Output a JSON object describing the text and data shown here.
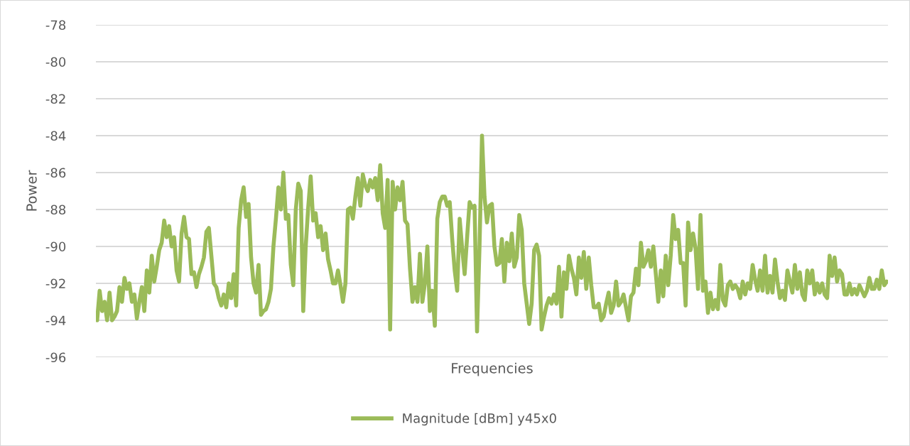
{
  "chart_data": {
    "type": "line",
    "xlabel": "Frequencies",
    "ylabel": "Power",
    "categories": [
      null,
      null,
      null,
      null,
      null,
      null,
      null,
      null,
      null,
      null,
      null,
      null,
      null,
      null,
      null,
      null,
      null,
      null,
      null,
      null,
      null,
      null,
      null,
      null,
      null,
      null,
      null,
      null,
      null,
      null,
      null,
      null,
      null,
      null,
      null,
      null,
      null,
      null,
      null,
      null,
      null,
      null,
      null,
      null,
      null,
      null,
      null,
      null,
      null,
      null,
      null,
      null,
      null,
      null,
      null,
      null,
      null,
      null,
      null,
      null,
      null,
      null,
      null,
      null,
      null,
      null,
      null,
      null,
      null,
      null,
      null,
      null,
      null,
      null,
      null,
      null,
      null,
      null,
      null,
      null,
      null,
      null,
      null,
      null,
      null,
      null,
      null,
      null,
      null,
      null,
      null,
      null,
      null,
      null,
      null,
      null,
      null,
      null,
      null,
      null,
      null,
      null,
      null,
      null,
      null,
      null,
      null,
      null,
      null,
      null,
      null,
      null,
      null,
      null,
      null,
      null,
      null,
      null,
      null,
      null,
      null,
      null,
      null,
      null,
      null,
      null,
      null,
      null,
      null,
      null,
      null,
      null,
      null,
      null,
      null,
      null,
      null,
      null,
      null,
      null,
      null,
      null,
      null,
      null,
      null,
      null,
      null,
      null,
      null,
      null,
      null,
      null,
      null,
      null,
      null,
      null,
      null,
      null,
      null,
      null,
      null,
      null,
      null,
      null,
      null,
      null,
      null,
      null,
      null,
      null,
      null,
      null,
      null,
      null,
      null,
      null,
      null,
      null,
      null,
      null,
      null,
      null,
      null,
      null,
      null,
      null,
      null,
      null,
      null,
      null,
      null,
      null,
      null,
      null,
      null,
      null,
      null,
      null,
      null,
      null,
      null,
      null,
      null,
      null,
      null,
      null,
      null,
      null,
      null,
      null,
      null,
      null,
      null,
      null,
      null,
      null,
      null,
      null,
      null,
      null,
      null,
      null,
      null,
      null,
      null,
      null,
      null,
      null,
      null,
      null,
      null,
      null,
      null,
      null,
      null,
      null,
      null,
      null,
      null,
      null,
      null,
      null,
      null,
      null,
      null,
      null,
      null,
      null,
      null,
      null,
      null,
      null,
      null,
      null,
      null,
      null,
      null,
      null,
      null,
      null,
      null,
      null,
      null,
      null,
      null,
      null,
      null,
      null,
      null,
      null,
      null,
      null,
      null,
      null,
      null,
      null,
      null,
      null,
      null,
      null,
      null,
      null,
      null,
      null,
      null,
      null,
      null,
      null,
      null,
      null,
      null,
      null,
      null,
      null,
      null,
      null,
      null,
      null,
      null,
      null,
      null,
      null,
      null,
      null,
      null,
      null,
      null,
      null,
      null,
      null,
      null,
      null,
      null,
      null,
      null,
      null,
      null,
      null,
      null
    ],
    "series": [
      {
        "name": "Magnitude [dBm] y45x0",
        "color": "#9bbb59",
        "values": [
          -94,
          -92.4,
          -93.5,
          -93,
          -94,
          -92.5,
          -94,
          -93.8,
          -93.5,
          -92.2,
          -93,
          -91.7,
          -92.3,
          -92,
          -93,
          -92.6,
          -93.9,
          -93,
          -92.2,
          -93.5,
          -91.3,
          -92.5,
          -90.5,
          -91.9,
          -91.1,
          -90.2,
          -89.8,
          -88.6,
          -89.5,
          -88.9,
          -90,
          -89.5,
          -91.3,
          -91.9,
          -89.3,
          -88.4,
          -89.5,
          -89.6,
          -91.5,
          -91.4,
          -92.2,
          -91.5,
          -91.1,
          -90.6,
          -89.2,
          -89,
          -90.5,
          -92,
          -92.2,
          -92.8,
          -93.2,
          -92.6,
          -93.3,
          -92,
          -92.8,
          -91.5,
          -93.2,
          -89,
          -87.5,
          -86.8,
          -88.4,
          -87.7,
          -90.6,
          -92,
          -92.5,
          -91,
          -93.7,
          -93.5,
          -93.4,
          -93,
          -92.3,
          -90,
          -88.5,
          -86.8,
          -88,
          -86,
          -88.5,
          -88.3,
          -91,
          -92.1,
          -88,
          -86.6,
          -87,
          -93.5,
          -90,
          -87.9,
          -86.2,
          -88.6,
          -88.2,
          -89.5,
          -88.9,
          -90.2,
          -89.3,
          -90.7,
          -91.3,
          -92,
          -92,
          -91.3,
          -92.1,
          -93,
          -92,
          -88,
          -87.9,
          -88.5,
          -87.3,
          -86.3,
          -87.8,
          -86.1,
          -86.7,
          -87,
          -86.4,
          -86.8,
          -86.3,
          -87.5,
          -85.6,
          -88.2,
          -89,
          -86.4,
          -94.5,
          -86.5,
          -88,
          -86.8,
          -87.5,
          -86.5,
          -88.6,
          -88.8,
          -91.2,
          -93,
          -92.2,
          -93,
          -90.4,
          -93,
          -92,
          -90,
          -93.5,
          -92.4,
          -94.3,
          -88.5,
          -87.6,
          -87.3,
          -87.3,
          -87.8,
          -87.6,
          -89.6,
          -91.3,
          -92.4,
          -88.5,
          -90.1,
          -91.5,
          -89.5,
          -87.6,
          -87.9,
          -87.8,
          -94.6,
          -90,
          -84,
          -87.3,
          -88.7,
          -87.8,
          -87.7,
          -90,
          -91,
          -90.9,
          -89.6,
          -91.9,
          -89.8,
          -90.8,
          -89.3,
          -91.1,
          -90.6,
          -88.3,
          -89.1,
          -92,
          -93.1,
          -94.2,
          -93.1,
          -90.2,
          -89.9,
          -90.5,
          -94.5,
          -93.8,
          -93.2,
          -92.8,
          -93.1,
          -92.6,
          -93.1,
          -91.1,
          -93.8,
          -91.4,
          -92.3,
          -90.5,
          -91.2,
          -91.7,
          -92.6,
          -90.6,
          -91.7,
          -90.3,
          -92.3,
          -90.6,
          -92.1,
          -93.3,
          -93.3,
          -93.1,
          -94,
          -93.8,
          -93.1,
          -92.5,
          -93.6,
          -93.2,
          -91.9,
          -93.2,
          -93,
          -92.6,
          -93.3,
          -94,
          -92.7,
          -92.5,
          -91.2,
          -92.1,
          -89.8,
          -91.1,
          -90.8,
          -90.2,
          -91.1,
          -90,
          -91.5,
          -93,
          -91.3,
          -92.7,
          -90.5,
          -92.1,
          -90.5,
          -88.3,
          -89.6,
          -89.1,
          -90.9,
          -90.9,
          -93.2,
          -88.7,
          -90.2,
          -89.3,
          -90.1,
          -92.3,
          -88.3,
          -92.4,
          -91.9,
          -93.6,
          -92.5,
          -93.4,
          -92.9,
          -93.4,
          -91,
          -92.9,
          -93.2,
          -92.1,
          -91.9,
          -92.3,
          -92.1,
          -92.3,
          -92.8,
          -91.9,
          -92.6,
          -92,
          -92.3,
          -91,
          -91.8,
          -92.4,
          -91.3,
          -92.4,
          -90.5,
          -92.5,
          -91.6,
          -92.5,
          -90.7,
          -91.9,
          -92.8,
          -92.4,
          -92.9,
          -91.3,
          -91.9,
          -92.5,
          -91,
          -92.3,
          -91.4,
          -92.6,
          -92.9,
          -91.3,
          -92,
          -91.3,
          -92.6,
          -92,
          -92.5,
          -92,
          -92.6,
          -92.8,
          -90.5,
          -91.6,
          -90.6,
          -91.9,
          -91.3,
          -91.5,
          -92.6,
          -92.6,
          -92,
          -92.6,
          -92.3,
          -92.6,
          -92.1,
          -92.4,
          -92.7,
          -92.4,
          -91.7,
          -92.3,
          -92.3,
          -91.8,
          -92.3,
          -91.3,
          -92.1,
          -91.9
        ]
      }
    ],
    "ylim": [
      -96,
      -78
    ],
    "yticks": [
      -96,
      -94,
      -92,
      -90,
      -88,
      -86,
      -84,
      -82,
      -80,
      -78
    ],
    "grid": "y",
    "legend": "bottom",
    "marker": "none",
    "line_style": "solid"
  }
}
